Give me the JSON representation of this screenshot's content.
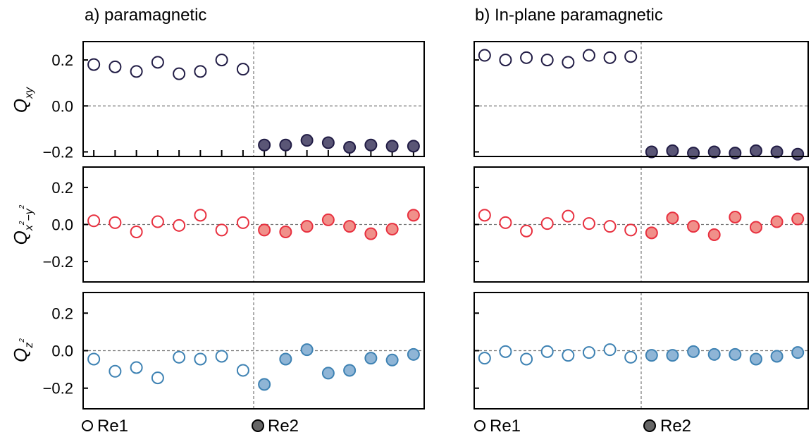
{
  "colors": {
    "qxy": "#211c45",
    "qxy_fill": "#5a5676",
    "qx2y2": "#e8303f",
    "qx2y2_fill": "#f0908a",
    "qz2": "#3e82b3",
    "qz2_fill": "#8fb5d6",
    "re2_legend_fill": "#666666"
  },
  "legend": {
    "re1": "Re1",
    "re2": "Re2"
  },
  "chart_data": [
    {
      "type": "scatter",
      "title": "a) paramagnetic",
      "xlim": [
        0.5,
        16.5
      ],
      "divider_x": 8.5,
      "rows": [
        {
          "ylabel": "Qxy",
          "ylim": [
            -0.22,
            0.28
          ],
          "yticks": [
            0.2,
            0.0,
            -0.2
          ],
          "yticklabels": [
            "0.2",
            "0.0",
            "−0.2"
          ],
          "series": [
            {
              "name": "Re1",
              "x": [
                1,
                2,
                3,
                4,
                5,
                6,
                7,
                8
              ],
              "y": [
                0.18,
                0.17,
                0.15,
                0.19,
                0.14,
                0.15,
                0.2,
                0.16
              ]
            },
            {
              "name": "Re2",
              "x": [
                9,
                10,
                11,
                12,
                13,
                14,
                15,
                16
              ],
              "y": [
                -0.17,
                -0.17,
                -0.15,
                -0.16,
                -0.18,
                -0.17,
                -0.175,
                -0.175
              ]
            }
          ]
        },
        {
          "ylabel": "Qx²−y²",
          "ylim": [
            -0.31,
            0.31
          ],
          "yticks": [
            0.2,
            0.0,
            -0.2
          ],
          "yticklabels": [
            "0.2",
            "0.0",
            "−0.2"
          ],
          "series": [
            {
              "name": "Re1",
              "x": [
                1,
                2,
                3,
                4,
                5,
                6,
                7,
                8
              ],
              "y": [
                0.02,
                0.01,
                -0.04,
                0.015,
                -0.005,
                0.05,
                -0.03,
                0.01
              ]
            },
            {
              "name": "Re2",
              "x": [
                9,
                10,
                11,
                12,
                13,
                14,
                15,
                16
              ],
              "y": [
                -0.03,
                -0.04,
                -0.01,
                0.025,
                -0.01,
                -0.05,
                -0.025,
                0.05
              ]
            }
          ]
        },
        {
          "ylabel": "Qz²",
          "ylim": [
            -0.31,
            0.31
          ],
          "yticks": [
            0.2,
            0.0,
            -0.2
          ],
          "yticklabels": [
            "0.2",
            "0.0",
            "−0.2"
          ],
          "series": [
            {
              "name": "Re1",
              "x": [
                1,
                2,
                3,
                4,
                5,
                6,
                7,
                8
              ],
              "y": [
                -0.045,
                -0.11,
                -0.09,
                -0.145,
                -0.035,
                -0.045,
                -0.03,
                -0.105
              ]
            },
            {
              "name": "Re2",
              "x": [
                9,
                10,
                11,
                12,
                13,
                14,
                15,
                16
              ],
              "y": [
                -0.18,
                -0.045,
                0.005,
                -0.12,
                -0.105,
                -0.04,
                -0.05,
                -0.02
              ]
            }
          ]
        }
      ]
    },
    {
      "type": "scatter",
      "title": "b) In-plane paramagnetic",
      "xlim": [
        0.5,
        16.5
      ],
      "divider_x": 8.5,
      "rows": [
        {
          "ylabel": "Qxy",
          "ylim": [
            -0.22,
            0.28
          ],
          "yticks": [
            0.2,
            0.0,
            -0.2
          ],
          "yticklabels": [
            "",
            "",
            ""
          ],
          "series": [
            {
              "name": "Re1",
              "x": [
                1,
                2,
                3,
                4,
                5,
                6,
                7,
                8
              ],
              "y": [
                0.22,
                0.2,
                0.21,
                0.2,
                0.19,
                0.22,
                0.21,
                0.215
              ]
            },
            {
              "name": "Re2",
              "x": [
                9,
                10,
                11,
                12,
                13,
                14,
                15,
                16
              ],
              "y": [
                -0.2,
                -0.195,
                -0.205,
                -0.2,
                -0.205,
                -0.195,
                -0.2,
                -0.21
              ]
            }
          ]
        },
        {
          "ylabel": "Qx²−y²",
          "ylim": [
            -0.31,
            0.31
          ],
          "yticks": [
            0.2,
            0.0,
            -0.2
          ],
          "yticklabels": [
            "",
            "",
            ""
          ],
          "series": [
            {
              "name": "Re1",
              "x": [
                1,
                2,
                3,
                4,
                5,
                6,
                7,
                8
              ],
              "y": [
                0.05,
                0.01,
                -0.035,
                0.005,
                0.045,
                0.005,
                -0.01,
                -0.03
              ]
            },
            {
              "name": "Re2",
              "x": [
                9,
                10,
                11,
                12,
                13,
                14,
                15,
                16
              ],
              "y": [
                -0.045,
                0.035,
                -0.01,
                -0.055,
                0.04,
                -0.015,
                0.015,
                0.03
              ]
            }
          ]
        },
        {
          "ylabel": "Qz²",
          "ylim": [
            -0.31,
            0.31
          ],
          "yticks": [
            0.2,
            0.0,
            -0.2
          ],
          "yticklabels": [
            "",
            "",
            ""
          ],
          "series": [
            {
              "name": "Re1",
              "x": [
                1,
                2,
                3,
                4,
                5,
                6,
                7,
                8
              ],
              "y": [
                -0.04,
                -0.005,
                -0.045,
                -0.005,
                -0.025,
                -0.01,
                0.005,
                -0.035
              ]
            },
            {
              "name": "Re2",
              "x": [
                9,
                10,
                11,
                12,
                13,
                14,
                15,
                16
              ],
              "y": [
                -0.025,
                -0.025,
                -0.005,
                -0.02,
                -0.02,
                -0.045,
                -0.03,
                -0.01
              ]
            }
          ]
        }
      ]
    }
  ]
}
